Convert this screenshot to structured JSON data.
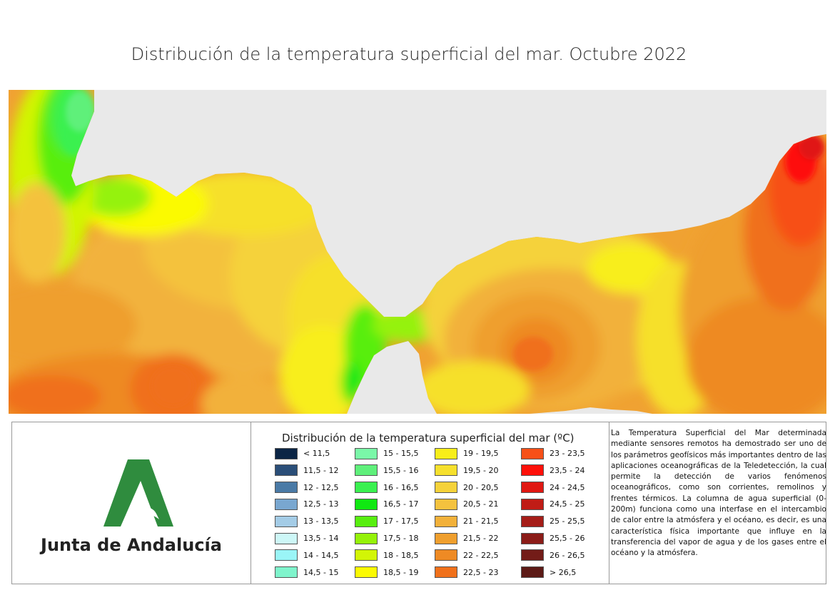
{
  "title": "Distribución de la temperatura superficial del mar. Octubre 2022",
  "logo": {
    "text": "Junta de Andalucía",
    "icon": "junta-andalucia-logo-icon"
  },
  "legend": {
    "title": "Distribución de la temperatura superficial del mar (ºC)",
    "items": [
      {
        "label": "< 11,5",
        "color": "#0b2545"
      },
      {
        "label": "11,5 - 12",
        "color": "#2a4e78"
      },
      {
        "label": "12 - 12,5",
        "color": "#4a7aa6"
      },
      {
        "label": "12,5 - 13",
        "color": "#79a7d0"
      },
      {
        "label": "13 - 13,5",
        "color": "#a4cce6"
      },
      {
        "label": "13,5 - 14",
        "color": "#cdf7f7"
      },
      {
        "label": "14 - 14,5",
        "color": "#9af5f7"
      },
      {
        "label": "14,5 - 15",
        "color": "#7ff4cc"
      },
      {
        "label": "15 - 15,5",
        "color": "#7af7a8"
      },
      {
        "label": "15,5 - 16",
        "color": "#5ef07a"
      },
      {
        "label": "16 - 16,5",
        "color": "#3af050"
      },
      {
        "label": "16,5 - 17",
        "color": "#10e812"
      },
      {
        "label": "17 - 17,5",
        "color": "#58ee10"
      },
      {
        "label": "17,5 - 18",
        "color": "#95f20a"
      },
      {
        "label": "18 - 18,5",
        "color": "#d2f506"
      },
      {
        "label": "18,5 - 19",
        "color": "#fbfa02"
      },
      {
        "label": "19 - 19,5",
        "color": "#f8ee1a"
      },
      {
        "label": "19,5 - 20",
        "color": "#f6e02c"
      },
      {
        "label": "20 - 20,5",
        "color": "#f5d23a"
      },
      {
        "label": "20,5 - 21",
        "color": "#f4c23e"
      },
      {
        "label": "21 - 21,5",
        "color": "#f2b13a"
      },
      {
        "label": "21,5 - 22",
        "color": "#ef9f2e"
      },
      {
        "label": "22 - 22,5",
        "color": "#ee8a24"
      },
      {
        "label": "22,5 - 23",
        "color": "#f0701a"
      },
      {
        "label": "23 - 23,5",
        "color": "#f75018"
      },
      {
        "label": "23,5 - 24",
        "color": "#fe0f08"
      },
      {
        "label": "24 - 24,5",
        "color": "#e01812"
      },
      {
        "label": "24,5 - 25",
        "color": "#c01c16"
      },
      {
        "label": "25 - 25,5",
        "color": "#a51d18"
      },
      {
        "label": "25,5 - 26",
        "color": "#8b1c18"
      },
      {
        "label": "26 - 26,5",
        "color": "#731c18"
      },
      {
        "label": "> 26,5",
        "color": "#5c1a16"
      }
    ]
  },
  "description": "La Temperatura Superficial del Mar determinada mediante sensores remotos ha demostrado ser uno de los parámetros geofísicos más importantes dentro de las aplicaciones oceanográficas de la Teledetección, la cual permite la detección de varios fenómenos oceanográficos, como son corrientes, remolinos y frentes térmicos. La columna de agua superficial (0-200m) funciona como una interfase en el intercambio de calor entre la atmósfera y el océano, es decir, es una característica física importante que influye en la transferencia del vapor de agua y de los gases entre el océano y la atmósfera.",
  "colors": {
    "land": "#e9e9e9",
    "border": "#999999"
  }
}
